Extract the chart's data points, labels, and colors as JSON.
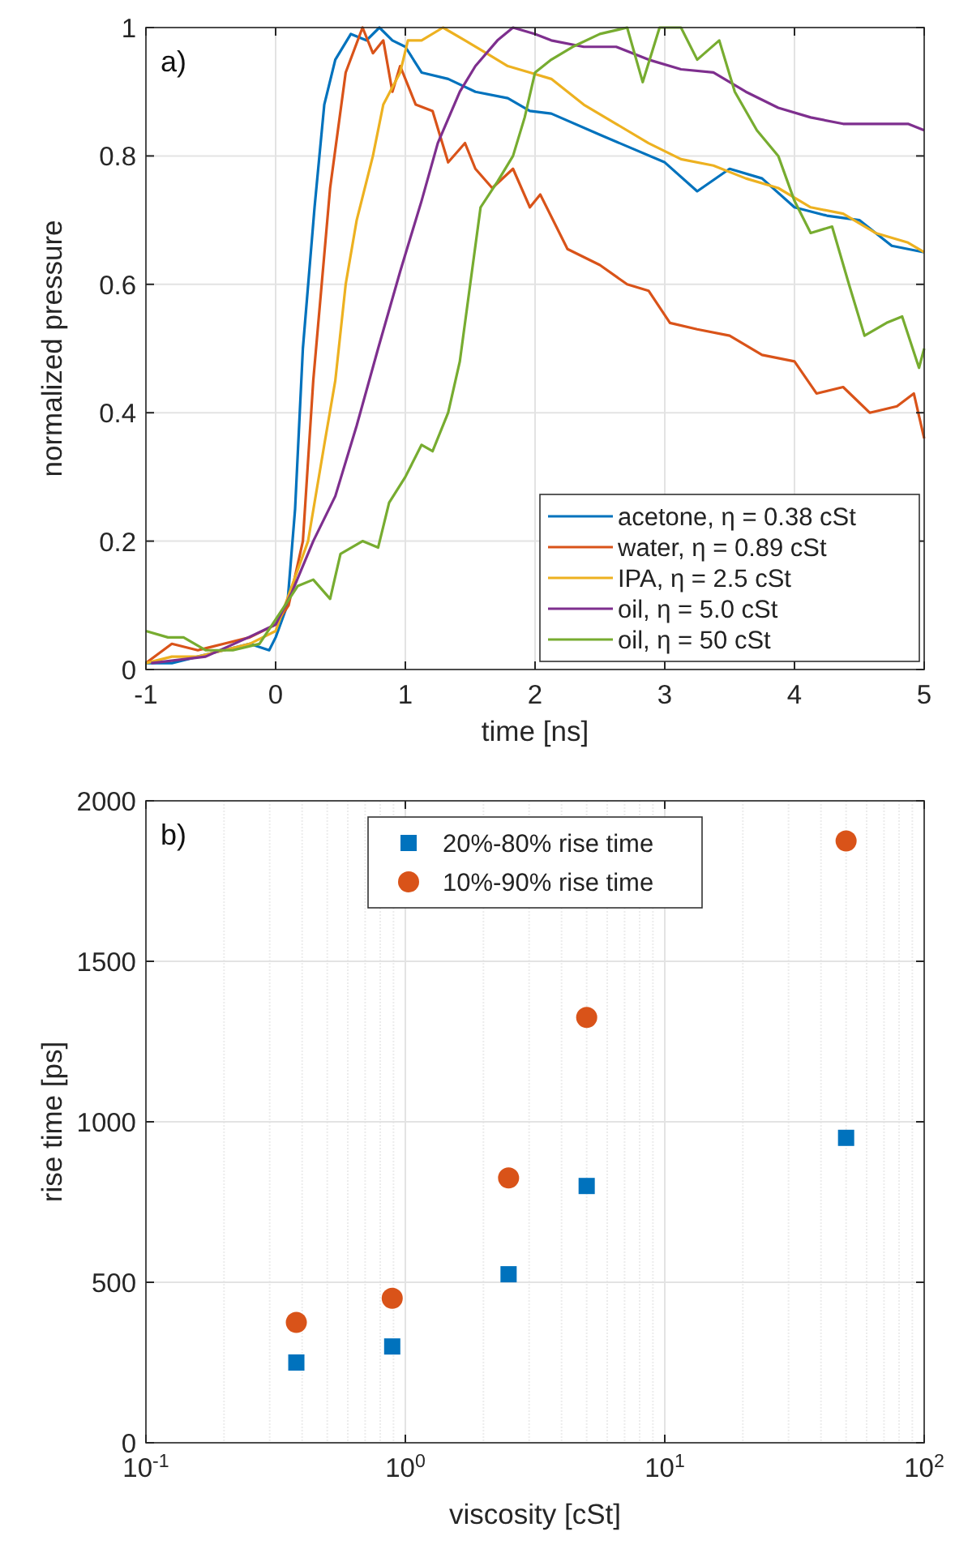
{
  "chart_data": [
    {
      "type": "line",
      "xlabel": "time [ns]",
      "ylabel": "normalized pressure",
      "annotations": [
        "a)"
      ],
      "xlim": [
        -1,
        5
      ],
      "ylim": [
        0,
        1
      ],
      "xticks": [
        -1,
        0,
        1,
        2,
        3,
        4,
        5
      ],
      "yticks": [
        0,
        0.2,
        0.4,
        0.6,
        0.8,
        1
      ],
      "grid": true,
      "legend": "bottom right",
      "line_style": "solid",
      "series": [
        {
          "name": "acetone, η = 0.38 cSt",
          "color": "#0072bd",
          "x": [
            -1,
            -0.8,
            -0.6,
            -0.4,
            -0.2,
            -0.05,
            0,
            0.09,
            0.15,
            0.21,
            0.3,
            0.375,
            0.46,
            0.58,
            0.7,
            0.8,
            0.9,
            1.0,
            1.125,
            1.33,
            1.54,
            1.79,
            1.96,
            2.125,
            2.5,
            3.0,
            3.25,
            3.5,
            3.75,
            4.0,
            4.25,
            4.5,
            4.75,
            5.0
          ],
          "values": [
            0.01,
            0.01,
            0.02,
            0.03,
            0.04,
            0.03,
            0.05,
            0.1,
            0.25,
            0.5,
            0.72,
            0.88,
            0.95,
            0.99,
            0.98,
            1.0,
            0.98,
            0.97,
            0.93,
            0.92,
            0.9,
            0.89,
            0.87,
            0.866,
            0.833,
            0.79,
            0.745,
            0.78,
            0.765,
            0.72,
            0.707,
            0.7,
            0.66,
            0.65
          ]
        },
        {
          "name": "water, η = 0.89 cSt",
          "color": "#d95319",
          "x": [
            -1,
            -0.8,
            -0.6,
            -0.4,
            -0.2,
            0,
            0.1,
            0.21,
            0.29,
            0.42,
            0.54,
            0.67,
            0.75,
            0.83,
            0.9,
            0.96,
            1.08,
            1.21,
            1.33,
            1.46,
            1.54,
            1.67,
            1.83,
            1.96,
            2.04,
            2.25,
            2.5,
            2.71,
            2.875,
            3.04,
            3.25,
            3.5,
            3.75,
            4.0,
            4.17,
            4.375,
            4.58,
            4.79,
            4.92,
            5.0
          ],
          "values": [
            0.01,
            0.04,
            0.03,
            0.04,
            0.05,
            0.07,
            0.1,
            0.2,
            0.45,
            0.75,
            0.93,
            1.0,
            0.96,
            0.98,
            0.9,
            0.94,
            0.88,
            0.87,
            0.79,
            0.82,
            0.78,
            0.75,
            0.78,
            0.72,
            0.74,
            0.655,
            0.63,
            0.6,
            0.59,
            0.54,
            0.53,
            0.52,
            0.49,
            0.48,
            0.43,
            0.44,
            0.4,
            0.41,
            0.43,
            0.36
          ]
        },
        {
          "name": "IPA, η = 2.5 cSt",
          "color": "#edb120",
          "x": [
            -1,
            -0.8,
            -0.6,
            -0.4,
            -0.2,
            0,
            0.09,
            0.25,
            0.375,
            0.46,
            0.54,
            0.625,
            0.75,
            0.83,
            0.96,
            1.02,
            1.125,
            1.29,
            1.46,
            1.625,
            1.79,
            1.96,
            2.125,
            2.375,
            2.625,
            2.875,
            3.125,
            3.375,
            3.625,
            3.875,
            4.125,
            4.375,
            4.625,
            4.875,
            5.0
          ],
          "values": [
            0.01,
            0.02,
            0.02,
            0.03,
            0.04,
            0.06,
            0.11,
            0.2,
            0.35,
            0.45,
            0.6,
            0.7,
            0.8,
            0.88,
            0.93,
            0.98,
            0.98,
            1.0,
            0.98,
            0.96,
            0.94,
            0.93,
            0.92,
            0.88,
            0.85,
            0.82,
            0.795,
            0.785,
            0.765,
            0.75,
            0.72,
            0.71,
            0.68,
            0.665,
            0.65
          ]
        },
        {
          "name": "oil, η = 5.0 cSt",
          "color": "#7e2f8e",
          "x": [
            -0.96,
            -0.54,
            -0.21,
            0,
            0.125,
            0.29,
            0.46,
            0.625,
            0.79,
            0.96,
            1.125,
            1.25,
            1.42,
            1.54,
            1.71,
            1.83,
            2.0,
            2.125,
            2.375,
            2.625,
            2.875,
            3.125,
            3.375,
            3.625,
            3.875,
            4.125,
            4.375,
            4.625,
            4.875,
            5.0
          ],
          "values": [
            0.01,
            0.02,
            0.05,
            0.07,
            0.12,
            0.2,
            0.27,
            0.38,
            0.5,
            0.62,
            0.73,
            0.82,
            0.9,
            0.94,
            0.98,
            1.0,
            0.99,
            0.98,
            0.97,
            0.97,
            0.95,
            0.935,
            0.93,
            0.9,
            0.875,
            0.86,
            0.85,
            0.85,
            0.85,
            0.84
          ]
        },
        {
          "name": "oil, η = 50 cSt",
          "color": "#77ac30",
          "x": [
            -1,
            -0.83,
            -0.71,
            -0.54,
            -0.33,
            -0.125,
            0.04,
            0.17,
            0.29,
            0.42,
            0.5,
            0.67,
            0.79,
            0.875,
            1.0,
            1.125,
            1.21,
            1.33,
            1.42,
            1.5,
            1.58,
            1.71,
            1.83,
            1.92,
            2.0,
            2.125,
            2.29,
            2.5,
            2.71,
            2.83,
            2.96,
            3.125,
            3.25,
            3.42,
            3.54,
            3.71,
            3.875,
            4.0,
            4.125,
            4.29,
            4.42,
            4.54,
            4.71,
            4.83,
            4.96,
            5.0
          ],
          "values": [
            0.06,
            0.05,
            0.05,
            0.03,
            0.03,
            0.04,
            0.09,
            0.13,
            0.14,
            0.11,
            0.18,
            0.2,
            0.19,
            0.26,
            0.3,
            0.35,
            0.34,
            0.4,
            0.48,
            0.6,
            0.72,
            0.76,
            0.8,
            0.86,
            0.93,
            0.95,
            0.97,
            0.99,
            1.0,
            0.915,
            1.0,
            1.0,
            0.95,
            0.98,
            0.9,
            0.84,
            0.8,
            0.73,
            0.68,
            0.69,
            0.6,
            0.52,
            0.54,
            0.55,
            0.47,
            0.5
          ]
        }
      ]
    },
    {
      "type": "scatter",
      "xlabel": "viscosity [cSt]",
      "ylabel": "rise time [ps]",
      "annotations": [
        "b)"
      ],
      "log": "x",
      "xlim": [
        0.1,
        100
      ],
      "ylim": [
        0,
        2000
      ],
      "xticks": [
        {
          "value": 0.1,
          "label": "10$^{-1}$"
        },
        {
          "value": 1,
          "label": "10$^{0}$"
        },
        {
          "value": 10,
          "label": "10$^{1}$"
        },
        {
          "value": 100,
          "label": "10$^{2}$"
        }
      ],
      "yticks": [
        0,
        500,
        1000,
        1500,
        2000
      ],
      "grid": true,
      "legend": "top",
      "x": [
        0.38,
        0.89,
        2.5,
        5,
        50
      ],
      "series": [
        {
          "name": "20%-80% rise time",
          "color": "#0072bd",
          "marker": "square",
          "values": [
            250,
            300,
            525,
            800,
            950
          ]
        },
        {
          "name": "10%-90% rise time",
          "color": "#d95319",
          "marker": "circle",
          "values": [
            375,
            450,
            825,
            1325,
            1875
          ]
        }
      ]
    }
  ]
}
